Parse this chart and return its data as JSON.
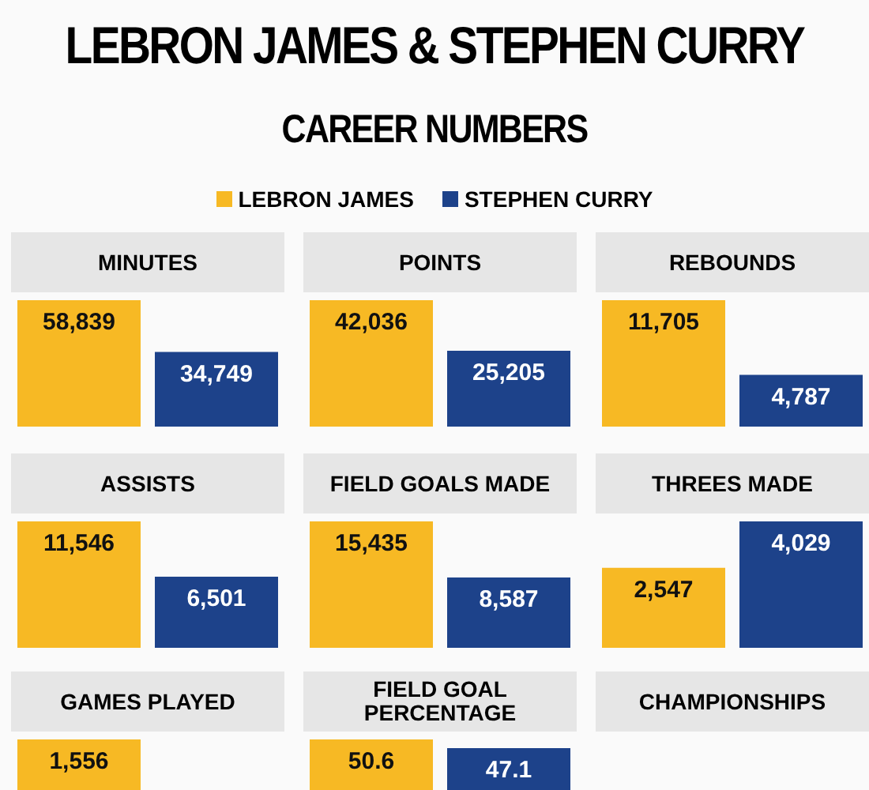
{
  "chart_data": [
    {
      "type": "other",
      "title": "LEBRON JAMES & STEPHEN CURRY",
      "subtitle": "CAREER NUMBERS"
    },
    {
      "type": "bar",
      "title": "MINUTES",
      "categories": [
        null
      ],
      "legend": "top",
      "series": [
        {
          "name": "LEBRON JAMES",
          "color": "#f7b924",
          "values": [
            58839
          ],
          "value_labels": [
            "58,839"
          ]
        },
        {
          "name": "STEPHEN CURRY",
          "color": "#1d428a",
          "values": [
            34749
          ],
          "value_labels": [
            "34,749"
          ]
        }
      ]
    },
    {
      "type": "bar",
      "title": "POINTS",
      "categories": [
        null
      ],
      "series": [
        {
          "color": "#f7b924",
          "values": [
            42036
          ],
          "value_labels": [
            "42,036"
          ]
        },
        {
          "color": "#1d428a",
          "values": [
            25205
          ],
          "value_labels": [
            "25,205"
          ]
        }
      ]
    },
    {
      "type": "bar",
      "title": "REBOUNDS",
      "categories": [
        null
      ],
      "series": [
        {
          "color": "#f7b924",
          "values": [
            11705
          ],
          "value_labels": [
            "11,705"
          ]
        },
        {
          "color": "#1d428a",
          "values": [
            4787
          ],
          "value_labels": [
            "4,787"
          ]
        }
      ]
    },
    {
      "type": "bar",
      "title": "ASSISTS",
      "categories": [
        null
      ],
      "series": [
        {
          "color": "#f7b924",
          "values": [
            11546
          ],
          "value_labels": [
            "11,546"
          ]
        },
        {
          "color": "#1d428a",
          "values": [
            6501
          ],
          "value_labels": [
            "6,501"
          ]
        }
      ]
    },
    {
      "type": "bar",
      "title": "FIELD GOALS MADE",
      "categories": [
        null
      ],
      "series": [
        {
          "color": "#f7b924",
          "values": [
            15435
          ],
          "value_labels": [
            "15,435"
          ]
        },
        {
          "color": "#1d428a",
          "values": [
            8587
          ],
          "value_labels": [
            "8,587"
          ]
        }
      ]
    },
    {
      "type": "bar",
      "title": "THREES MADE",
      "categories": [
        null
      ],
      "series": [
        {
          "color": "#f7b924",
          "values": [
            2547
          ],
          "value_labels": [
            "2,547"
          ]
        },
        {
          "color": "#1d428a",
          "values": [
            4029
          ],
          "value_labels": [
            "4,029"
          ]
        }
      ]
    },
    {
      "type": "bar",
      "title": "GAMES PLAYED",
      "categories": [
        null
      ],
      "series": [
        {
          "color": "#f7b924",
          "values": [
            1556
          ],
          "value_labels": [
            "1,556"
          ]
        },
        {
          "color": "#1d428a",
          "values": [
            null
          ],
          "value_labels": [
            null
          ]
        }
      ]
    },
    {
      "type": "bar",
      "title": "FIELD GOAL PERCENTAGE",
      "categories": [
        null
      ],
      "series": [
        {
          "color": "#f7b924",
          "values": [
            50.6
          ],
          "value_labels": [
            "50.6"
          ]
        },
        {
          "color": "#1d428a",
          "values": [
            47.1
          ],
          "value_labels": [
            "47.1"
          ]
        }
      ]
    },
    {
      "type": "other",
      "title": "CHAMPIONSHIPS"
    }
  ]
}
